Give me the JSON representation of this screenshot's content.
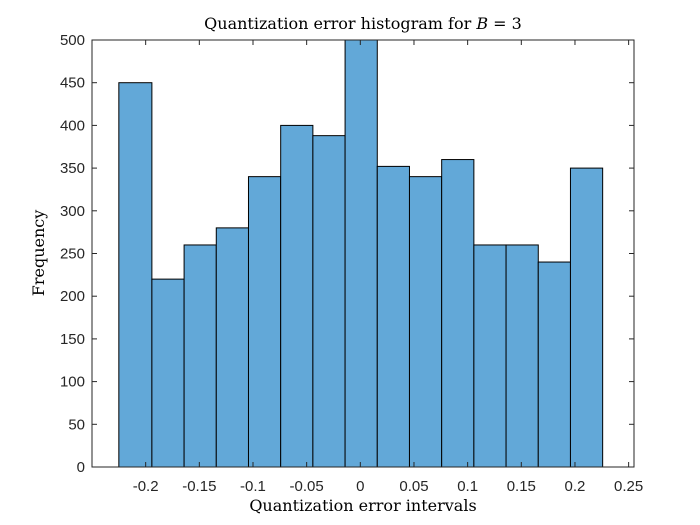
{
  "chart_data": {
    "type": "bar",
    "title": "Quantization error histogram for B = 3",
    "title_parts": {
      "prefix": "Quantization error histogram for ",
      "var": "B",
      "suffix": " = 3"
    },
    "xlabel": "Quantization error intervals",
    "ylabel": "Frequency",
    "xlim": [
      -0.25,
      0.255
    ],
    "ylim": [
      0,
      500
    ],
    "bin_edges": [
      -0.225,
      -0.1942,
      -0.1642,
      -0.1342,
      -0.1042,
      -0.0742,
      -0.0442,
      -0.0142,
      0.0158,
      0.0458,
      0.0758,
      0.1058,
      0.1358,
      0.1658,
      0.1958,
      0.2258
    ],
    "values": [
      450,
      220,
      260,
      280,
      340,
      400,
      388,
      500,
      352,
      340,
      360,
      260,
      260,
      240,
      350
    ],
    "xticks": [
      -0.2,
      -0.15,
      -0.1,
      -0.05,
      0,
      0.05,
      0.1,
      0.15,
      0.2,
      0.25
    ],
    "xtick_labels": [
      "-0.2",
      "-0.15",
      "-0.1",
      "-0.05",
      "0",
      "0.05",
      "0.1",
      "0.15",
      "0.2",
      "0.25"
    ],
    "yticks": [
      0,
      50,
      100,
      150,
      200,
      250,
      300,
      350,
      400,
      450,
      500
    ],
    "ytick_labels": [
      "0",
      "50",
      "100",
      "150",
      "200",
      "250",
      "300",
      "350",
      "400",
      "450",
      "500"
    ],
    "grid": false,
    "colors": {
      "bar_fill": "#62a8d8",
      "bar_edge": "#000000",
      "axes": "#262626"
    }
  }
}
